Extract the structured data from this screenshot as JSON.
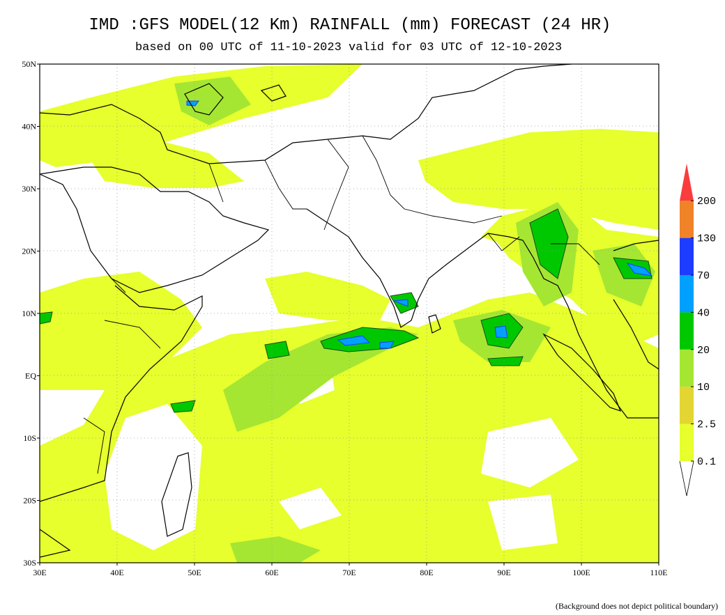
{
  "title": "IMD :GFS MODEL(12 Km) RAINFALL (mm) FORECAST (24 HR)",
  "subtitle": "based on 00 UTC of 11-10-2023 valid for 03 UTC of 12-10-2023",
  "map": {
    "lat_labels": [
      "50N",
      "40N",
      "30N",
      "20N",
      "10N",
      "EQ",
      "10S",
      "20S",
      "30S"
    ],
    "lon_labels": [
      "30E",
      "40E",
      "50E",
      "60E",
      "70E",
      "80E",
      "90E",
      "100E",
      "110E"
    ]
  },
  "legend": {
    "levels": [
      "0.1",
      "2.5",
      "10",
      "20",
      "40",
      "70",
      "130",
      "200"
    ],
    "colors": [
      "#e6ff2d",
      "#e3d532",
      "#a5e632",
      "#00c800",
      "#00a0ff",
      "#1e3cff",
      "#f08228",
      "#fa3c3c"
    ]
  },
  "footnote": "(Background does not depict political boundary)"
}
